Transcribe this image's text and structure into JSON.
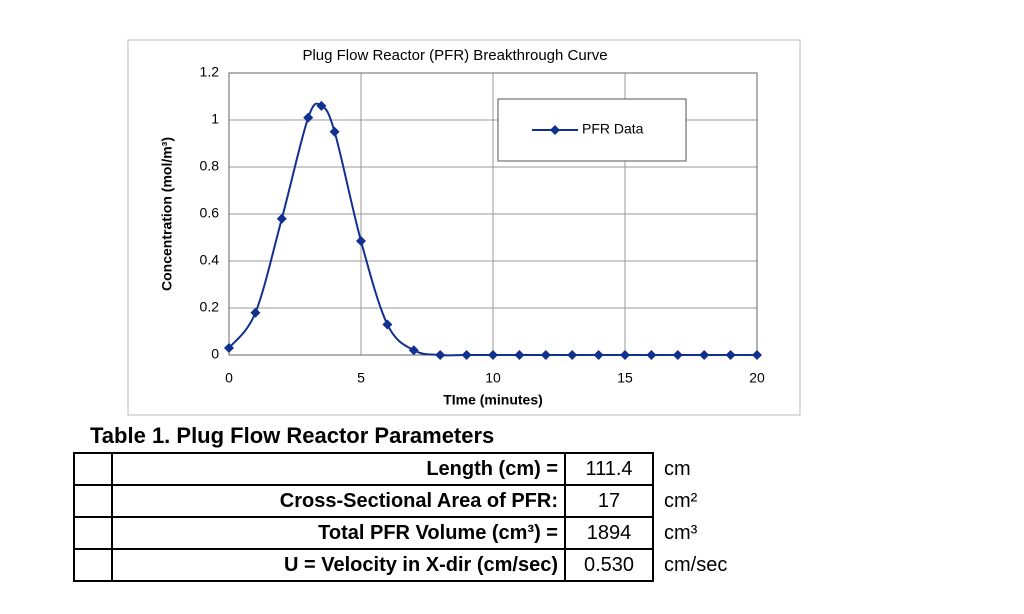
{
  "chart_data": {
    "type": "line",
    "title": "Plug Flow Reactor (PFR) Breakthrough Curve",
    "x_label": "TIme (minutes)",
    "y_label": "Concentration (mol/m³)",
    "x": [
      0,
      1,
      2,
      3,
      3.5,
      4,
      5,
      6,
      7,
      8,
      9,
      10,
      11,
      12,
      13,
      14,
      15,
      16,
      17,
      18,
      19,
      20
    ],
    "series": [
      {
        "name": "PFR Data",
        "color": "#12308f",
        "values": [
          0.03,
          0.18,
          0.58,
          1.01,
          1.06,
          0.95,
          0.485,
          0.13,
          0.02,
          0,
          0,
          0,
          0,
          0,
          0,
          0,
          0,
          0,
          0,
          0,
          0,
          0
        ]
      }
    ],
    "xlim": [
      0,
      20
    ],
    "xticks": [
      0,
      5,
      10,
      15,
      20
    ],
    "ylim": [
      0,
      1.2
    ],
    "yticks": [
      0,
      0.2,
      0.4,
      0.6,
      0.8,
      1,
      1.2
    ],
    "grid": true,
    "legend": "upper right"
  },
  "table": {
    "title": "Table 1. Plug Flow Reactor Parameters",
    "rows": [
      [
        "Length (cm) =",
        "111.4",
        "cm"
      ],
      [
        "Cross-Sectional Area of PFR:",
        "17",
        "cm²"
      ],
      [
        "Total PFR Volume (cm³) =",
        "1894",
        "cm³"
      ],
      [
        "U = Velocity in X-dir (cm/sec)",
        "0.530",
        "cm/sec"
      ]
    ]
  }
}
